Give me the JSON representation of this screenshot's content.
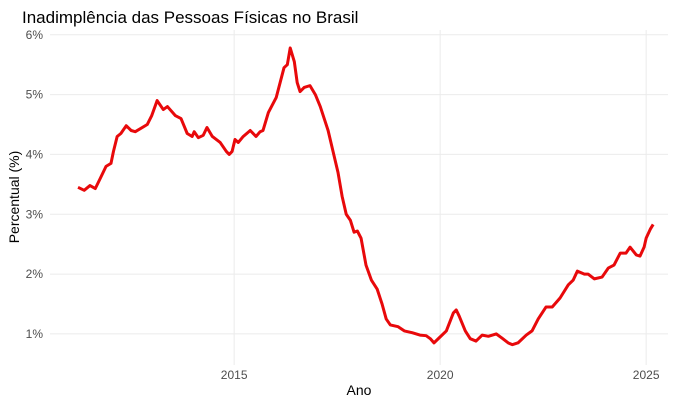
{
  "chart_data": {
    "type": "line",
    "title": "Inadimplência das Pessoas Físicas no Brasil",
    "x_label": "Ano",
    "y_label": "Percentual (%)",
    "color": "#e8090b",
    "grid": true,
    "xlim": [
      2010.53,
      2025.53
    ],
    "ylim": [
      0.48,
      6.08
    ],
    "xticks": [
      2015,
      2020,
      2025
    ],
    "yticks": [
      {
        "value": 1,
        "label": "1%"
      },
      {
        "value": 2,
        "label": "2%"
      },
      {
        "value": 3,
        "label": "3%"
      },
      {
        "value": 4,
        "label": "4%"
      },
      {
        "value": 5,
        "label": "5%"
      },
      {
        "value": 6,
        "label": "6%"
      }
    ],
    "x": [
      2011.21,
      2011.36,
      2011.5,
      2011.63,
      2011.75,
      2011.89,
      2012.01,
      2012.07,
      2012.16,
      2012.25,
      2012.38,
      2012.5,
      2012.6,
      2012.89,
      2013.0,
      2013.13,
      2013.28,
      2013.38,
      2013.57,
      2013.71,
      2013.86,
      2013.98,
      2014.03,
      2014.13,
      2014.25,
      2014.34,
      2014.47,
      2014.66,
      2014.81,
      2014.88,
      2014.95,
      2015.02,
      2015.1,
      2015.22,
      2015.39,
      2015.53,
      2015.63,
      2015.7,
      2015.83,
      2016.02,
      2016.21,
      2016.29,
      2016.36,
      2016.46,
      2016.53,
      2016.6,
      2016.7,
      2016.84,
      2016.97,
      2017.09,
      2017.28,
      2017.4,
      2017.52,
      2017.62,
      2017.72,
      2017.82,
      2017.91,
      2017.99,
      2018.08,
      2018.2,
      2018.33,
      2018.47,
      2018.59,
      2018.69,
      2018.79,
      2018.98,
      2019.13,
      2019.32,
      2019.51,
      2019.66,
      2019.76,
      2019.85,
      2020.0,
      2020.15,
      2020.32,
      2020.39,
      2020.46,
      2020.61,
      2020.73,
      2020.87,
      2021.02,
      2021.17,
      2021.36,
      2021.5,
      2021.65,
      2021.75,
      2021.89,
      2022.09,
      2022.23,
      2022.38,
      2022.57,
      2022.72,
      2022.91,
      2023.11,
      2023.23,
      2023.33,
      2023.5,
      2023.59,
      2023.74,
      2023.93,
      2024.08,
      2024.22,
      2024.37,
      2024.51,
      2024.61,
      2024.76,
      2024.85,
      2024.95,
      2025.0,
      2025.1,
      2025.17
    ],
    "values": [
      3.45,
      3.4,
      3.48,
      3.43,
      3.6,
      3.8,
      3.85,
      4.05,
      4.3,
      4.35,
      4.48,
      4.4,
      4.38,
      4.5,
      4.65,
      4.9,
      4.75,
      4.8,
      4.65,
      4.6,
      4.35,
      4.3,
      4.38,
      4.28,
      4.32,
      4.45,
      4.3,
      4.2,
      4.05,
      4.0,
      4.05,
      4.25,
      4.2,
      4.3,
      4.4,
      4.3,
      4.38,
      4.4,
      4.7,
      4.95,
      5.45,
      5.5,
      5.78,
      5.55,
      5.2,
      5.05,
      5.12,
      5.15,
      5.0,
      4.8,
      4.4,
      4.05,
      3.7,
      3.3,
      3.0,
      2.9,
      2.7,
      2.72,
      2.6,
      2.15,
      1.9,
      1.75,
      1.5,
      1.25,
      1.15,
      1.12,
      1.05,
      1.02,
      0.98,
      0.97,
      0.92,
      0.85,
      0.95,
      1.05,
      1.35,
      1.4,
      1.3,
      1.05,
      0.92,
      0.88,
      0.98,
      0.96,
      1.0,
      0.93,
      0.85,
      0.82,
      0.85,
      0.98,
      1.05,
      1.25,
      1.45,
      1.45,
      1.6,
      1.82,
      1.9,
      2.05,
      2.0,
      2.0,
      1.92,
      1.95,
      2.1,
      2.15,
      2.35,
      2.35,
      2.45,
      2.32,
      2.3,
      2.45,
      2.6,
      2.75,
      2.83
    ]
  }
}
